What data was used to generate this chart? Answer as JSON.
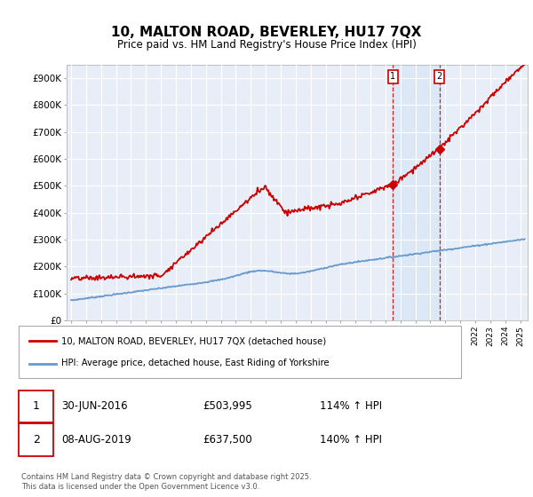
{
  "title": "10, MALTON ROAD, BEVERLEY, HU17 7QX",
  "subtitle": "Price paid vs. HM Land Registry's House Price Index (HPI)",
  "ylabel_ticks": [
    "£0",
    "£100K",
    "£200K",
    "£300K",
    "£400K",
    "£500K",
    "£600K",
    "£700K",
    "£800K",
    "£900K"
  ],
  "ytick_values": [
    0,
    100000,
    200000,
    300000,
    400000,
    500000,
    600000,
    700000,
    800000,
    900000
  ],
  "ylim": [
    0,
    950000
  ],
  "xlim_start": 1994.7,
  "xlim_end": 2025.5,
  "red_color": "#cc0000",
  "blue_color": "#6699cc",
  "bg_color": "#ffffff",
  "plot_bg_color": "#e8eef8",
  "grid_color": "#ffffff",
  "shade_color": "#dce8f5",
  "annotation1_date": "30-JUN-2016",
  "annotation1_price": "£503,995",
  "annotation1_hpi": "114% ↑ HPI",
  "annotation2_date": "08-AUG-2019",
  "annotation2_price": "£637,500",
  "annotation2_hpi": "140% ↑ HPI",
  "legend_line1": "10, MALTON ROAD, BEVERLEY, HU17 7QX (detached house)",
  "legend_line2": "HPI: Average price, detached house, East Riding of Yorkshire",
  "footer": "Contains HM Land Registry data © Crown copyright and database right 2025.\nThis data is licensed under the Open Government Licence v3.0.",
  "marker1_x": 2016.5,
  "marker1_y": 503995,
  "marker2_x": 2019.6,
  "marker2_y": 637500
}
